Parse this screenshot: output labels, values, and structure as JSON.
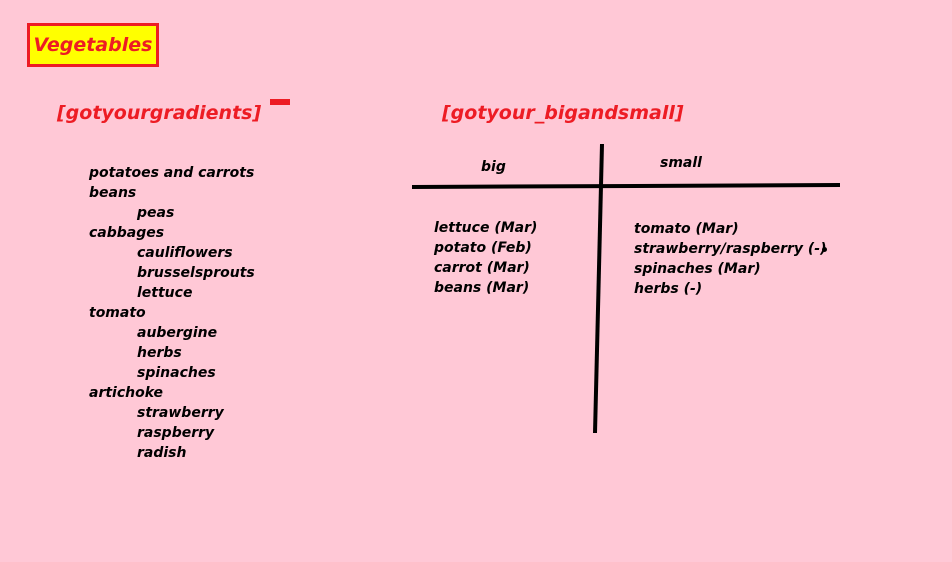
{
  "title": "Vegetables",
  "left_heading": "[gotyourgradients]",
  "right_heading": "[gotyour_bigandsmall]",
  "gradients_list": [
    {
      "text": "potatoes and carrots",
      "level": 0
    },
    {
      "text": "beans",
      "level": 0
    },
    {
      "text": "peas",
      "level": 1
    },
    {
      "text": "cabbages",
      "level": 0
    },
    {
      "text": "cauliflowers",
      "level": 1
    },
    {
      "text": "brusselsprouts",
      "level": 1
    },
    {
      "text": "lettuce",
      "level": 1
    },
    {
      "text": "tomato",
      "level": 0
    },
    {
      "text": "aubergine",
      "level": 1
    },
    {
      "text": "herbs",
      "level": 1
    },
    {
      "text": "spinaches",
      "level": 1
    },
    {
      "text": "artichoke",
      "level": 0
    },
    {
      "text": "strawberry",
      "level": 1
    },
    {
      "text": "raspberry",
      "level": 1
    },
    {
      "text": "radish",
      "level": 1
    }
  ],
  "table": {
    "big_label": "big",
    "small_label": "small",
    "big_items": [
      "lettuce (Mar)",
      "potato (Feb)",
      "carrot (Mar)",
      "beans (Mar)"
    ],
    "small_items": [
      "tomato (Mar)",
      "strawberry/raspberry (-)",
      "spinaches (Mar)",
      "herbs (-)"
    ]
  },
  "colors": {
    "background": "#ffc8d6",
    "accent_red": "#ed1c24",
    "title_fill": "#ffff00"
  }
}
